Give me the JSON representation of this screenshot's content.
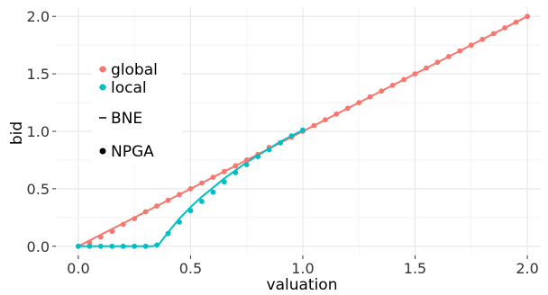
{
  "chart_data": {
    "type": "line",
    "xlabel": "valuation",
    "ylabel": "bid",
    "xlim": [
      -0.1,
      2.06
    ],
    "ylim": [
      -0.08,
      2.08
    ],
    "xticks": [
      0.0,
      0.5,
      1.0,
      1.5,
      2.0
    ],
    "xtick_labels": [
      "0.0",
      "0.5",
      "1.0",
      "1.5",
      "2.0"
    ],
    "yticks": [
      0.0,
      0.5,
      1.0,
      1.5,
      2.0
    ],
    "ytick_labels": [
      "0.0",
      "0.5",
      "1.0",
      "1.5",
      "2.0"
    ],
    "grid": true,
    "legend_position": "top-left",
    "legend": {
      "color_entries": [
        {
          "label": "global",
          "color": "#F8766D"
        },
        {
          "label": "local",
          "color": "#00BFC4"
        }
      ],
      "style_entries": [
        {
          "label": "BNE",
          "marker": "line"
        },
        {
          "label": "NPGA",
          "marker": "point"
        }
      ]
    },
    "series": [
      {
        "name": "global",
        "style": "BNE",
        "color": "#F8766D",
        "x": [
          0.0,
          2.0
        ],
        "y": [
          0.0,
          2.0
        ]
      },
      {
        "name": "local",
        "style": "BNE",
        "color": "#00BFC4",
        "x": [
          0.0,
          0.33,
          0.36,
          0.4,
          0.45,
          0.5,
          0.55,
          0.6,
          0.65,
          0.7,
          0.75,
          0.8,
          0.85,
          0.9,
          0.95,
          1.0
        ],
        "y": [
          0.0,
          0.0,
          0.02,
          0.12,
          0.24,
          0.34,
          0.43,
          0.51,
          0.59,
          0.66,
          0.73,
          0.79,
          0.85,
          0.91,
          0.96,
          1.01
        ]
      },
      {
        "name": "global",
        "style": "NPGA",
        "color": "#F8766D",
        "x": [
          0.0,
          0.05,
          0.1,
          0.15,
          0.2,
          0.25,
          0.3,
          0.35,
          0.4,
          0.45,
          0.5,
          0.55,
          0.6,
          0.65,
          0.7,
          0.75,
          0.8,
          0.85,
          0.9,
          0.95,
          1.0,
          1.05,
          1.1,
          1.15,
          1.2,
          1.25,
          1.3,
          1.35,
          1.4,
          1.45,
          1.5,
          1.55,
          1.6,
          1.65,
          1.7,
          1.75,
          1.8,
          1.85,
          1.9,
          1.95,
          2.0
        ],
        "y": [
          0.0,
          0.03,
          0.08,
          0.13,
          0.19,
          0.24,
          0.3,
          0.35,
          0.4,
          0.45,
          0.5,
          0.55,
          0.6,
          0.65,
          0.7,
          0.75,
          0.8,
          0.86,
          0.9,
          0.95,
          1.0,
          1.05,
          1.1,
          1.15,
          1.2,
          1.25,
          1.3,
          1.35,
          1.4,
          1.45,
          1.5,
          1.55,
          1.6,
          1.65,
          1.7,
          1.75,
          1.8,
          1.85,
          1.9,
          1.95,
          2.0
        ]
      },
      {
        "name": "local",
        "style": "NPGA",
        "color": "#00BFC4",
        "x": [
          0.0,
          0.05,
          0.1,
          0.15,
          0.2,
          0.25,
          0.3,
          0.35,
          0.4,
          0.45,
          0.5,
          0.55,
          0.6,
          0.65,
          0.7,
          0.75,
          0.8,
          0.85,
          0.9,
          0.95,
          1.0
        ],
        "y": [
          0.0,
          0.0,
          0.0,
          0.0,
          0.0,
          0.0,
          0.0,
          0.01,
          0.11,
          0.21,
          0.31,
          0.39,
          0.47,
          0.56,
          0.64,
          0.71,
          0.78,
          0.84,
          0.9,
          0.96,
          1.01
        ]
      }
    ]
  }
}
